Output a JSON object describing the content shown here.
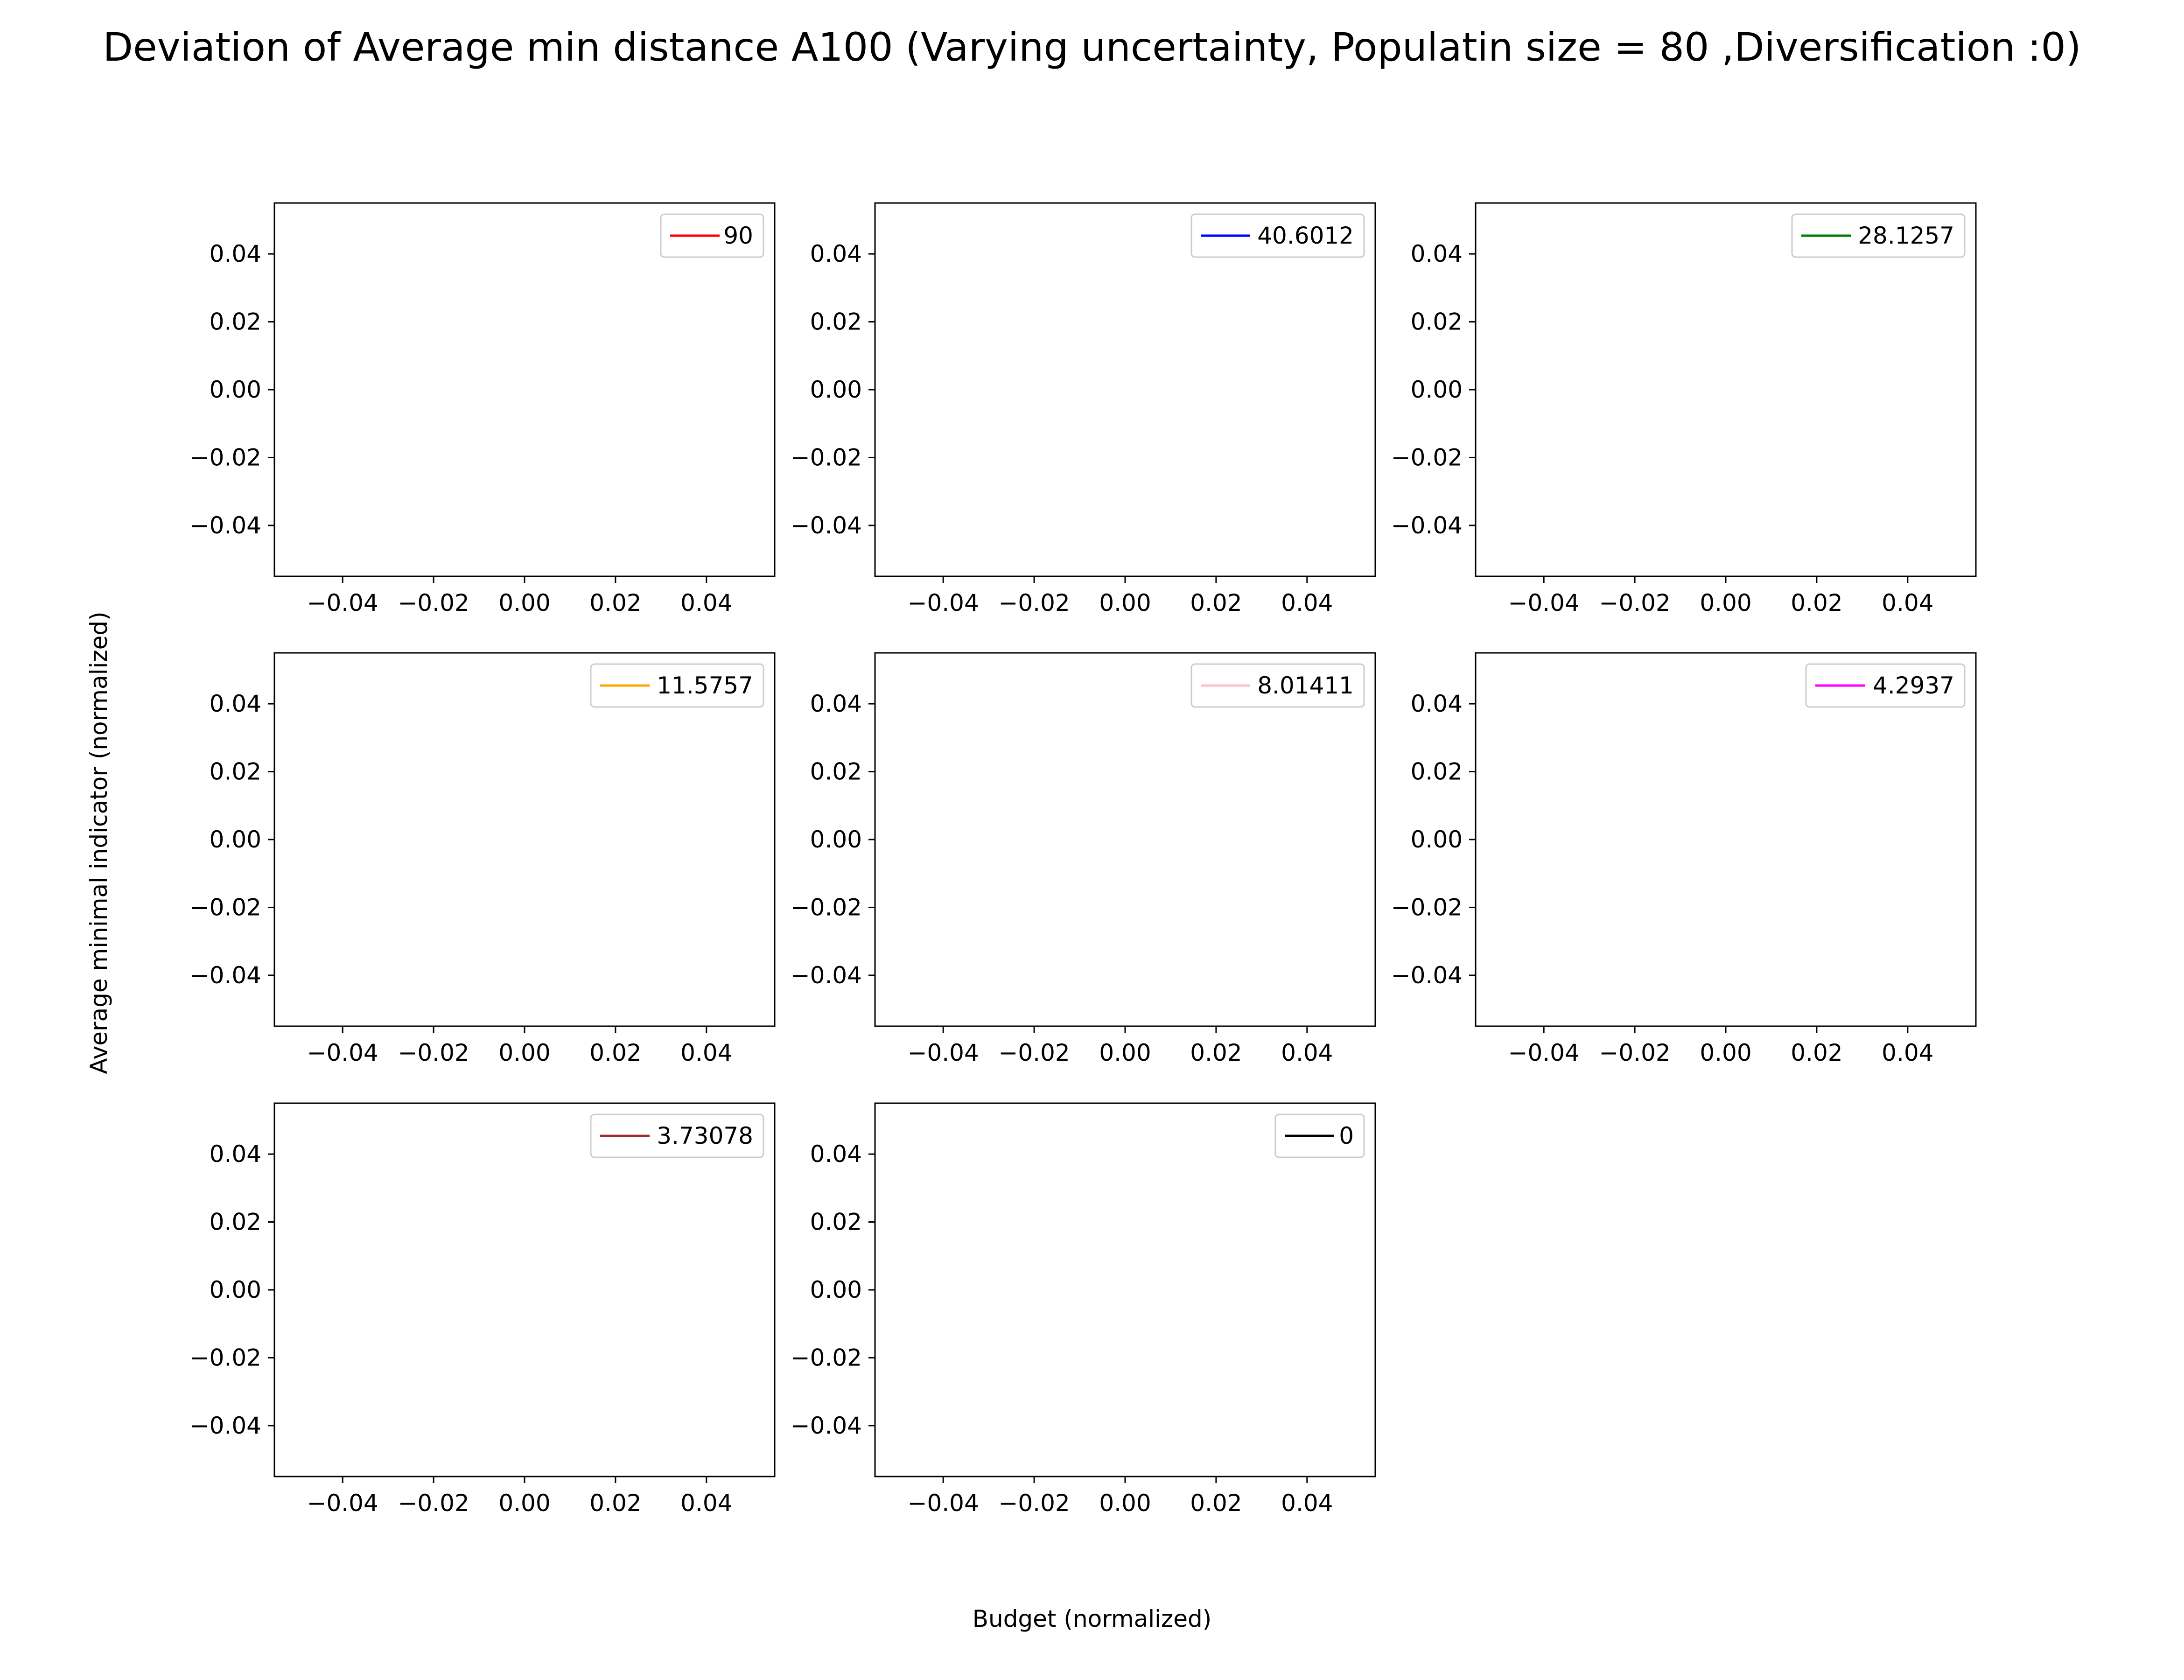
{
  "figure": {
    "title": "Deviation of Average min distance A100 (Varying uncertainty, Populatin size = 80 ,Diversification :0)",
    "xlabel": "Budget (normalized)",
    "ylabel": "Average minimal indicator (normalized)"
  },
  "chart_data": [
    {
      "type": "line",
      "series": [
        {
          "name": "90",
          "color": "#ff0000",
          "x": [],
          "y": []
        }
      ],
      "xlim": [
        -0.055,
        0.055
      ],
      "ylim": [
        -0.055,
        0.055
      ],
      "xticks": [
        "−0.04",
        "−0.02",
        "0.00",
        "0.02",
        "0.04"
      ],
      "yticks": [
        "−0.04",
        "−0.02",
        "0.00",
        "0.02",
        "0.04"
      ],
      "legend": "top-right",
      "grid": false
    },
    {
      "type": "line",
      "series": [
        {
          "name": "40.6012",
          "color": "#0000ff",
          "x": [],
          "y": []
        }
      ],
      "xlim": [
        -0.055,
        0.055
      ],
      "ylim": [
        -0.055,
        0.055
      ],
      "xticks": [
        "−0.04",
        "−0.02",
        "0.00",
        "0.02",
        "0.04"
      ],
      "yticks": [
        "−0.04",
        "−0.02",
        "0.00",
        "0.02",
        "0.04"
      ],
      "legend": "top-right",
      "grid": false
    },
    {
      "type": "line",
      "series": [
        {
          "name": "28.1257",
          "color": "#008000",
          "x": [],
          "y": []
        }
      ],
      "xlim": [
        -0.055,
        0.055
      ],
      "ylim": [
        -0.055,
        0.055
      ],
      "xticks": [
        "−0.04",
        "−0.02",
        "0.00",
        "0.02",
        "0.04"
      ],
      "yticks": [
        "−0.04",
        "−0.02",
        "0.00",
        "0.02",
        "0.04"
      ],
      "legend": "top-right",
      "grid": false
    },
    {
      "type": "line",
      "series": [
        {
          "name": "11.5757",
          "color": "#ffa500",
          "x": [],
          "y": []
        }
      ],
      "xlim": [
        -0.055,
        0.055
      ],
      "ylim": [
        -0.055,
        0.055
      ],
      "xticks": [
        "−0.04",
        "−0.02",
        "0.00",
        "0.02",
        "0.04"
      ],
      "yticks": [
        "−0.04",
        "−0.02",
        "0.00",
        "0.02",
        "0.04"
      ],
      "legend": "top-right",
      "grid": false
    },
    {
      "type": "line",
      "series": [
        {
          "name": "8.01411",
          "color": "#ffc0cb",
          "x": [],
          "y": []
        }
      ],
      "xlim": [
        -0.055,
        0.055
      ],
      "ylim": [
        -0.055,
        0.055
      ],
      "xticks": [
        "−0.04",
        "−0.02",
        "0.00",
        "0.02",
        "0.04"
      ],
      "yticks": [
        "−0.04",
        "−0.02",
        "0.00",
        "0.02",
        "0.04"
      ],
      "legend": "top-right",
      "grid": false
    },
    {
      "type": "line",
      "series": [
        {
          "name": "4.2937",
          "color": "#ff00ff",
          "x": [],
          "y": []
        }
      ],
      "xlim": [
        -0.055,
        0.055
      ],
      "ylim": [
        -0.055,
        0.055
      ],
      "xticks": [
        "−0.04",
        "−0.02",
        "0.00",
        "0.02",
        "0.04"
      ],
      "yticks": [
        "−0.04",
        "−0.02",
        "0.00",
        "0.02",
        "0.04"
      ],
      "legend": "top-right",
      "grid": false
    },
    {
      "type": "line",
      "series": [
        {
          "name": "3.73078",
          "color": "#a52a2a",
          "x": [],
          "y": []
        }
      ],
      "xlim": [
        -0.055,
        0.055
      ],
      "ylim": [
        -0.055,
        0.055
      ],
      "xticks": [
        "−0.04",
        "−0.02",
        "0.00",
        "0.02",
        "0.04"
      ],
      "yticks": [
        "−0.04",
        "−0.02",
        "0.00",
        "0.02",
        "0.04"
      ],
      "legend": "top-right",
      "grid": false
    },
    {
      "type": "line",
      "series": [
        {
          "name": "0",
          "color": "#000000",
          "x": [],
          "y": []
        }
      ],
      "xlim": [
        -0.055,
        0.055
      ],
      "ylim": [
        -0.055,
        0.055
      ],
      "xticks": [
        "−0.04",
        "−0.02",
        "0.00",
        "0.02",
        "0.04"
      ],
      "yticks": [
        "−0.04",
        "−0.02",
        "0.00",
        "0.02",
        "0.04"
      ],
      "legend": "top-right",
      "grid": false
    }
  ]
}
